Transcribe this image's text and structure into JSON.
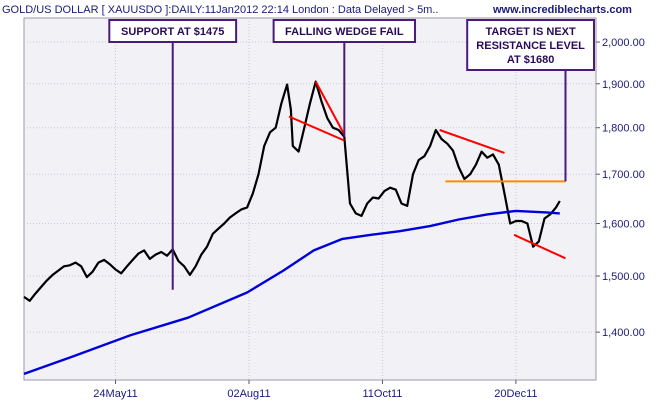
{
  "chart_data": {
    "type": "line",
    "title": "GOLD/US DOLLAR [ XAUUSDO ]:DAILY:11Jan2012 22:14 London : Data Delayed > 5m..",
    "source": "www.incrediblecharts.com",
    "xlabel": "",
    "ylabel": "",
    "ylim": [
      1320,
      2060
    ],
    "y_scale": "log",
    "y_ticks": [
      {
        "value": 1400,
        "label": "1,400.00"
      },
      {
        "value": 1500,
        "label": "1,500.00"
      },
      {
        "value": 1600,
        "label": "1,600.00"
      },
      {
        "value": 1700,
        "label": "1,700.00"
      },
      {
        "value": 1800,
        "label": "1,800.00"
      },
      {
        "value": 1900,
        "label": "1,900.00"
      },
      {
        "value": 2000,
        "label": "2,000.00"
      }
    ],
    "x_range": [
      "2011-04-06",
      "2012-01-31"
    ],
    "x_ticks": [
      {
        "date": "2011-05-24",
        "label": "24May11"
      },
      {
        "date": "2011-08-02",
        "label": "02Aug11"
      },
      {
        "date": "2011-10-11",
        "label": "11Oct11"
      },
      {
        "date": "2011-12-20",
        "label": "20Dec11"
      }
    ],
    "grid": true,
    "series": [
      {
        "name": "",
        "color": "#000000",
        "points": [
          [
            "2011-04-06",
            1462
          ],
          [
            "2011-04-09",
            1455
          ],
          [
            "2011-04-12",
            1468
          ],
          [
            "2011-04-15",
            1480
          ],
          [
            "2011-04-18",
            1492
          ],
          [
            "2011-04-21",
            1502
          ],
          [
            "2011-04-24",
            1510
          ],
          [
            "2011-04-27",
            1518
          ],
          [
            "2011-04-30",
            1520
          ],
          [
            "2011-05-03",
            1525
          ],
          [
            "2011-05-06",
            1518
          ],
          [
            "2011-05-09",
            1498
          ],
          [
            "2011-05-12",
            1508
          ],
          [
            "2011-05-15",
            1525
          ],
          [
            "2011-05-18",
            1530
          ],
          [
            "2011-05-21",
            1522
          ],
          [
            "2011-05-24",
            1512
          ],
          [
            "2011-05-27",
            1505
          ],
          [
            "2011-05-30",
            1518
          ],
          [
            "2011-06-02",
            1530
          ],
          [
            "2011-06-05",
            1542
          ],
          [
            "2011-06-08",
            1548
          ],
          [
            "2011-06-11",
            1532
          ],
          [
            "2011-06-14",
            1540
          ],
          [
            "2011-06-17",
            1545
          ],
          [
            "2011-06-20",
            1538
          ],
          [
            "2011-06-23",
            1550
          ],
          [
            "2011-06-26",
            1528
          ],
          [
            "2011-06-29",
            1518
          ],
          [
            "2011-07-02",
            1502
          ],
          [
            "2011-07-05",
            1518
          ],
          [
            "2011-07-08",
            1540
          ],
          [
            "2011-07-11",
            1555
          ],
          [
            "2011-07-14",
            1580
          ],
          [
            "2011-07-17",
            1590
          ],
          [
            "2011-07-20",
            1600
          ],
          [
            "2011-07-23",
            1612
          ],
          [
            "2011-07-26",
            1620
          ],
          [
            "2011-07-29",
            1628
          ],
          [
            "2011-08-01",
            1632
          ],
          [
            "2011-08-04",
            1660
          ],
          [
            "2011-08-07",
            1700
          ],
          [
            "2011-08-10",
            1760
          ],
          [
            "2011-08-13",
            1790
          ],
          [
            "2011-08-16",
            1800
          ],
          [
            "2011-08-19",
            1855
          ],
          [
            "2011-08-22",
            1898
          ],
          [
            "2011-08-24",
            1840
          ],
          [
            "2011-08-25",
            1760
          ],
          [
            "2011-08-28",
            1748
          ],
          [
            "2011-08-31",
            1800
          ],
          [
            "2011-09-03",
            1855
          ],
          [
            "2011-09-06",
            1905
          ],
          [
            "2011-09-09",
            1860
          ],
          [
            "2011-09-12",
            1822
          ],
          [
            "2011-09-15",
            1800
          ],
          [
            "2011-09-18",
            1795
          ],
          [
            "2011-09-21",
            1780
          ],
          [
            "2011-09-24",
            1640
          ],
          [
            "2011-09-27",
            1620
          ],
          [
            "2011-09-30",
            1615
          ],
          [
            "2011-10-03",
            1640
          ],
          [
            "2011-10-06",
            1652
          ],
          [
            "2011-10-09",
            1650
          ],
          [
            "2011-10-12",
            1665
          ],
          [
            "2011-10-15",
            1672
          ],
          [
            "2011-10-18",
            1668
          ],
          [
            "2011-10-21",
            1640
          ],
          [
            "2011-10-24",
            1635
          ],
          [
            "2011-10-27",
            1700
          ],
          [
            "2011-10-30",
            1730
          ],
          [
            "2011-11-02",
            1738
          ],
          [
            "2011-11-05",
            1760
          ],
          [
            "2011-11-08",
            1795
          ],
          [
            "2011-11-11",
            1775
          ],
          [
            "2011-11-14",
            1765
          ],
          [
            "2011-11-17",
            1750
          ],
          [
            "2011-11-20",
            1715
          ],
          [
            "2011-11-23",
            1690
          ],
          [
            "2011-11-26",
            1700
          ],
          [
            "2011-11-29",
            1720
          ],
          [
            "2011-12-02",
            1748
          ],
          [
            "2011-12-05",
            1735
          ],
          [
            "2011-12-08",
            1742
          ],
          [
            "2011-12-11",
            1720
          ],
          [
            "2011-12-14",
            1660
          ],
          [
            "2011-12-17",
            1600
          ],
          [
            "2011-12-20",
            1605
          ],
          [
            "2011-12-23",
            1605
          ],
          [
            "2011-12-26",
            1600
          ],
          [
            "2011-12-29",
            1555
          ],
          [
            "2012-01-01",
            1565
          ],
          [
            "2012-01-04",
            1610
          ],
          [
            "2012-01-07",
            1618
          ],
          [
            "2012-01-10",
            1632
          ],
          [
            "2012-01-12",
            1645
          ]
        ]
      },
      {
        "name": "",
        "color": "#0000dd",
        "points": [
          [
            "2011-04-06",
            1330
          ],
          [
            "2011-05-01",
            1358
          ],
          [
            "2011-06-01",
            1395
          ],
          [
            "2011-07-01",
            1425
          ],
          [
            "2011-08-01",
            1470
          ],
          [
            "2011-08-20",
            1510
          ],
          [
            "2011-09-05",
            1548
          ],
          [
            "2011-09-20",
            1570
          ],
          [
            "2011-10-05",
            1578
          ],
          [
            "2011-10-20",
            1585
          ],
          [
            "2011-11-05",
            1595
          ],
          [
            "2011-11-20",
            1608
          ],
          [
            "2011-12-05",
            1618
          ],
          [
            "2011-12-20",
            1625
          ],
          [
            "2012-01-05",
            1622
          ],
          [
            "2012-01-12",
            1620
          ]
        ]
      }
    ],
    "trendlines": [
      {
        "color": "#ff0000",
        "points": [
          [
            "2011-09-06",
            1905
          ],
          [
            "2011-09-21",
            1785
          ]
        ]
      },
      {
        "color": "#ff0000",
        "points": [
          [
            "2011-08-23",
            1825
          ],
          [
            "2011-09-21",
            1772
          ]
        ]
      },
      {
        "color": "#ff0000",
        "points": [
          [
            "2011-11-10",
            1795
          ],
          [
            "2011-12-14",
            1745
          ]
        ]
      },
      {
        "color": "#ff0000",
        "points": [
          [
            "2011-12-19",
            1578
          ],
          [
            "2012-01-15",
            1533
          ]
        ]
      },
      {
        "color": "#ff8800",
        "points": [
          [
            "2011-11-13",
            1685
          ],
          [
            "2012-01-15",
            1685
          ]
        ]
      }
    ],
    "annotations": [
      {
        "text": [
          "SUPPORT AT $1475"
        ],
        "anchor_date": "2011-06-23",
        "line_to": 1475
      },
      {
        "text": [
          "FALLING WEDGE FAIL"
        ],
        "anchor_date": "2011-09-21",
        "line_to": 1780
      },
      {
        "text": [
          "TARGET IS NEXT",
          "RESISTANCE LEVEL",
          "AT $1680"
        ],
        "anchor_date": "2012-01-15",
        "line_to": 1685
      }
    ]
  }
}
